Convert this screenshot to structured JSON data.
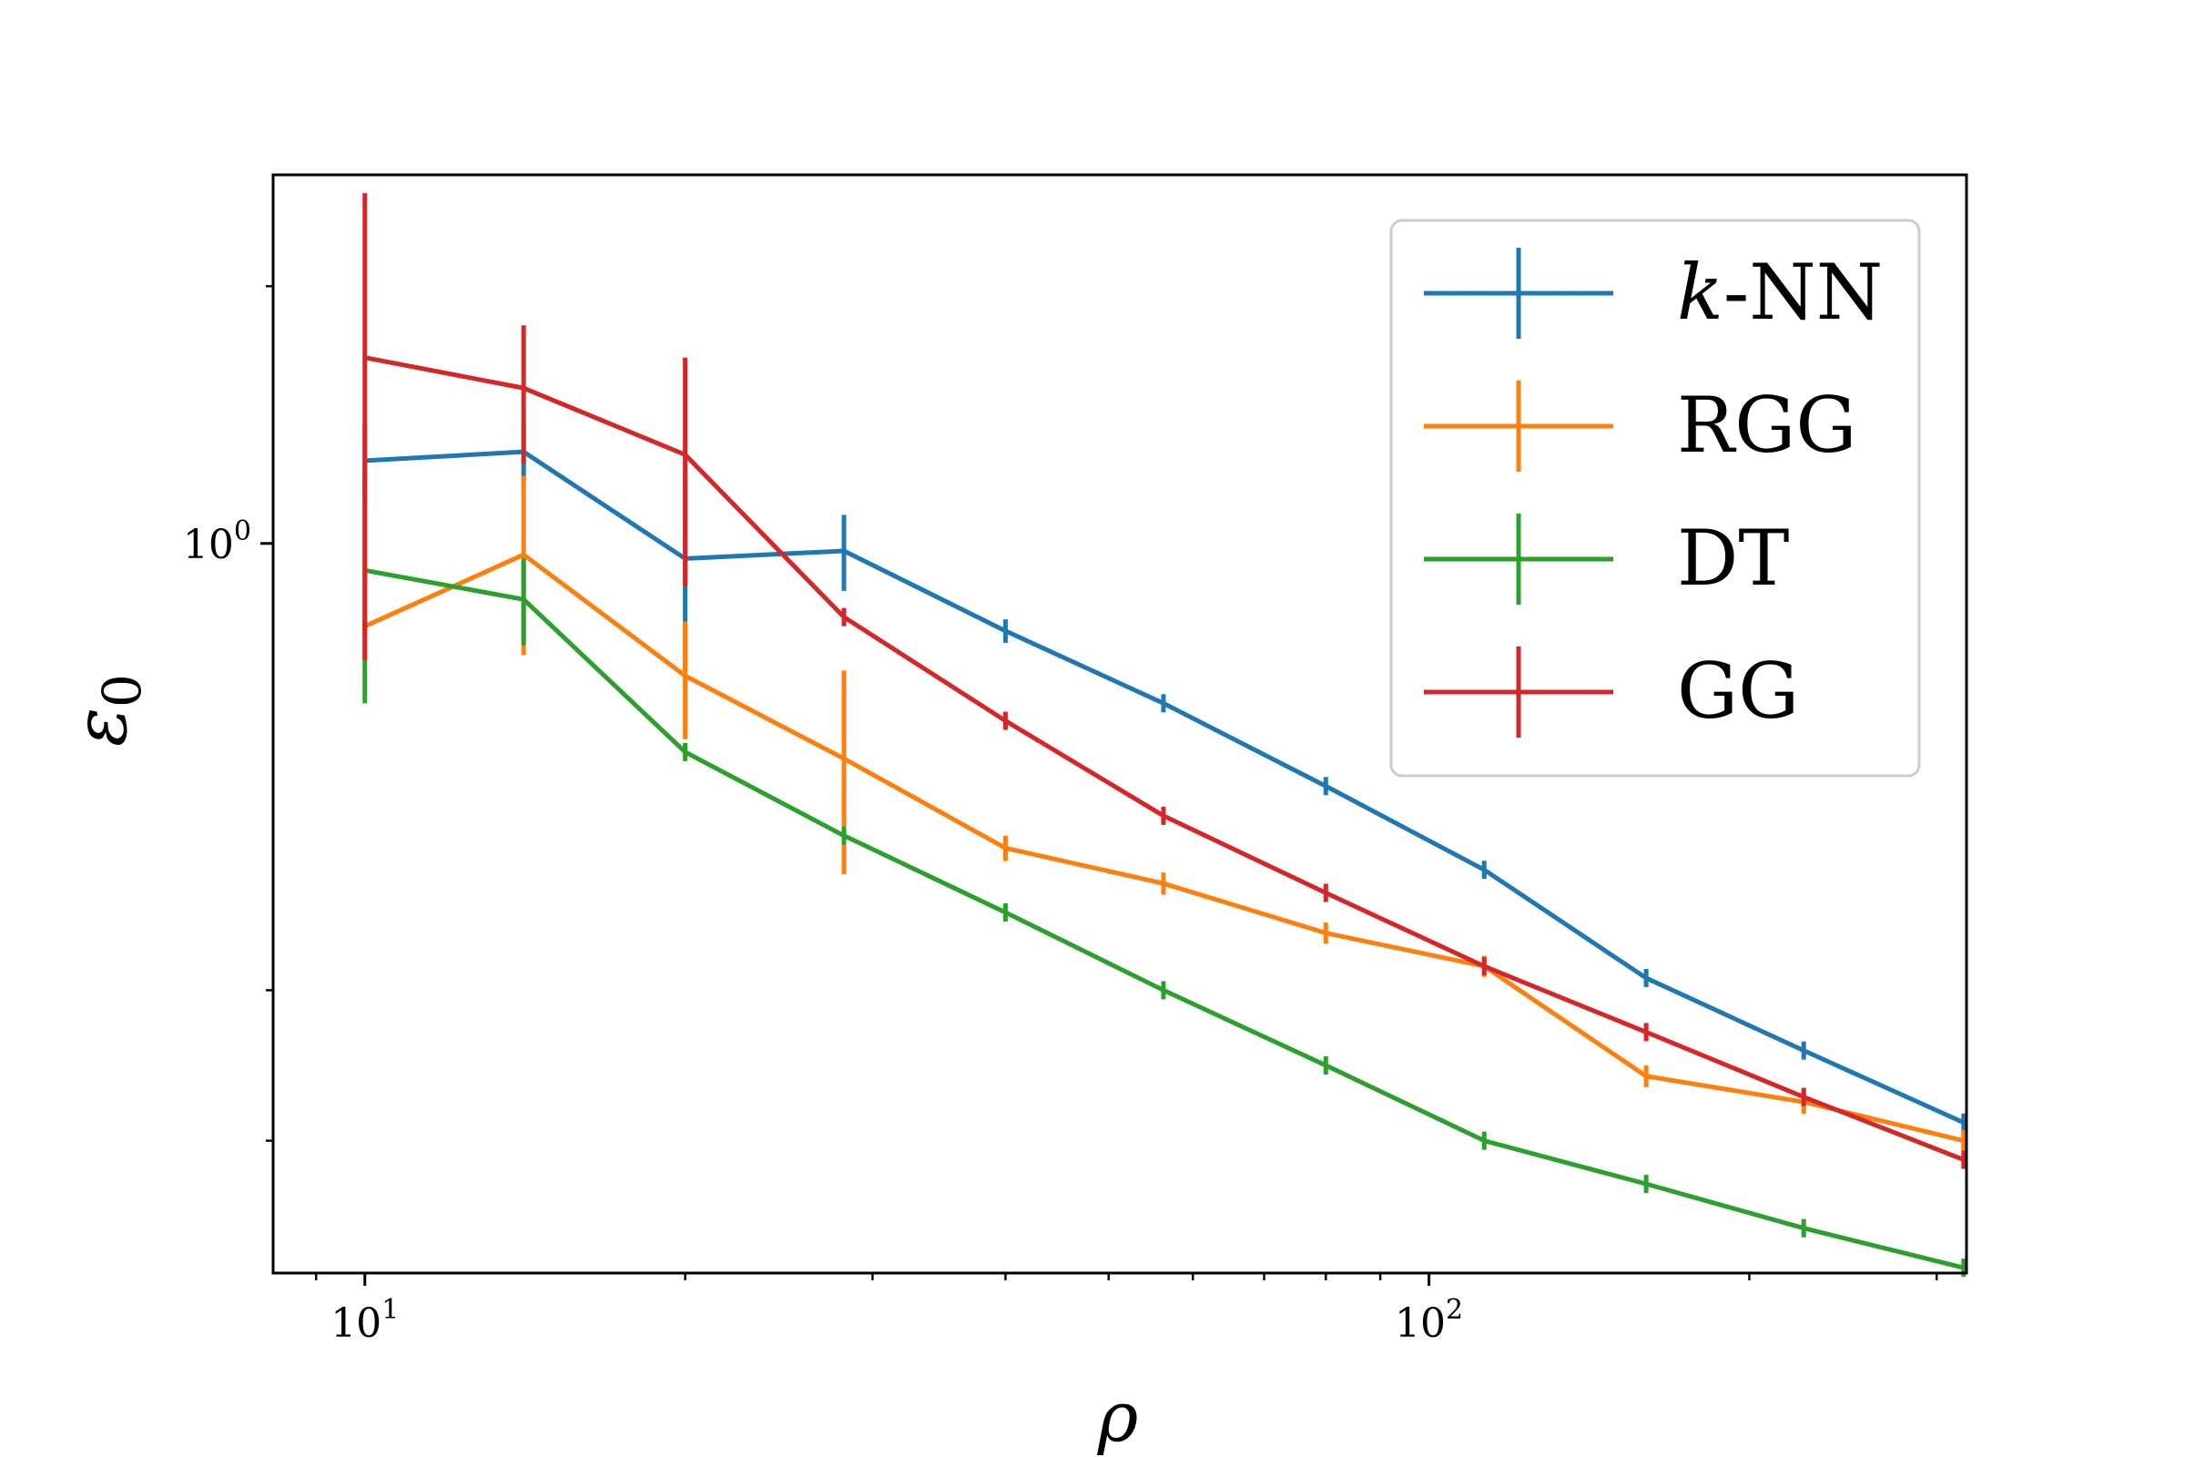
{
  "chart_data": {
    "type": "line",
    "title": "",
    "xlabel": "ρ",
    "ylabel": "ε",
    "ylabel_subscript": "0",
    "xscale": "log",
    "yscale": "log",
    "xlim": [
      8.2,
      320
    ],
    "ylim": [
      0.14,
      2.7
    ],
    "grid": false,
    "legend_position": "top-right",
    "x_major_ticks": [
      {
        "value": 10,
        "base": "10",
        "exp": "1"
      },
      {
        "value": 100,
        "base": "10",
        "exp": "2"
      }
    ],
    "y_major_ticks": [
      {
        "value": 1,
        "base": "10",
        "exp": "0"
      }
    ],
    "x_minor_ticks": [
      9,
      20,
      30,
      40,
      50,
      60,
      70,
      80,
      90,
      200,
      300
    ],
    "y_minor_ticks": [
      0.2,
      0.3,
      2
    ],
    "x": [
      10,
      14.1,
      20,
      28.2,
      40,
      56.3,
      80,
      112.7,
      160,
      225,
      318
    ],
    "series": [
      {
        "name": "k-NN",
        "name_italic": "k",
        "name_rest": "-NN",
        "color": "#1f77b4",
        "values": [
          1.25,
          1.28,
          0.96,
          0.98,
          0.79,
          0.65,
          0.52,
          0.415,
          0.31,
          0.255,
          0.21
        ],
        "errors": [
          0.12,
          0.1,
          0.25,
          0.1,
          0.025,
          0.013,
          0.012,
          0.004,
          0.003,
          0.002,
          0.002
        ]
      },
      {
        "name": "RGG",
        "name_italic": "",
        "name_rest": "RGG",
        "color": "#ff7f0e",
        "values": [
          0.8,
          0.97,
          0.7,
          0.56,
          0.44,
          0.4,
          0.35,
          0.32,
          0.238,
          0.222,
          0.2
        ],
        "errors": [
          0.01,
          0.23,
          0.11,
          0.15,
          0.015,
          0.012,
          0.01,
          0.009,
          0.007,
          0.007,
          0.006
        ]
      },
      {
        "name": "DT",
        "name_italic": "",
        "name_rest": "DT",
        "color": "#2ca02c",
        "values": [
          0.93,
          0.86,
          0.57,
          0.455,
          0.37,
          0.3,
          0.245,
          0.2,
          0.178,
          0.158,
          0.142
        ],
        "errors": [
          0.28,
          0.1,
          0.003,
          0.002,
          0.001,
          0.001,
          0.001,
          0.001,
          0.001,
          0.001,
          0.001
        ]
      },
      {
        "name": "GG",
        "name_italic": "",
        "name_rest": "GG",
        "color": "#d62728",
        "values": [
          1.65,
          1.52,
          1.27,
          0.82,
          0.62,
          0.48,
          0.39,
          0.32,
          0.268,
          0.225,
          0.19
        ],
        "errors": [
          0.92,
          0.28,
          0.38,
          0.02,
          0.004,
          0.003,
          0.002,
          0.002,
          0.002,
          0.002,
          0.002
        ]
      }
    ]
  }
}
